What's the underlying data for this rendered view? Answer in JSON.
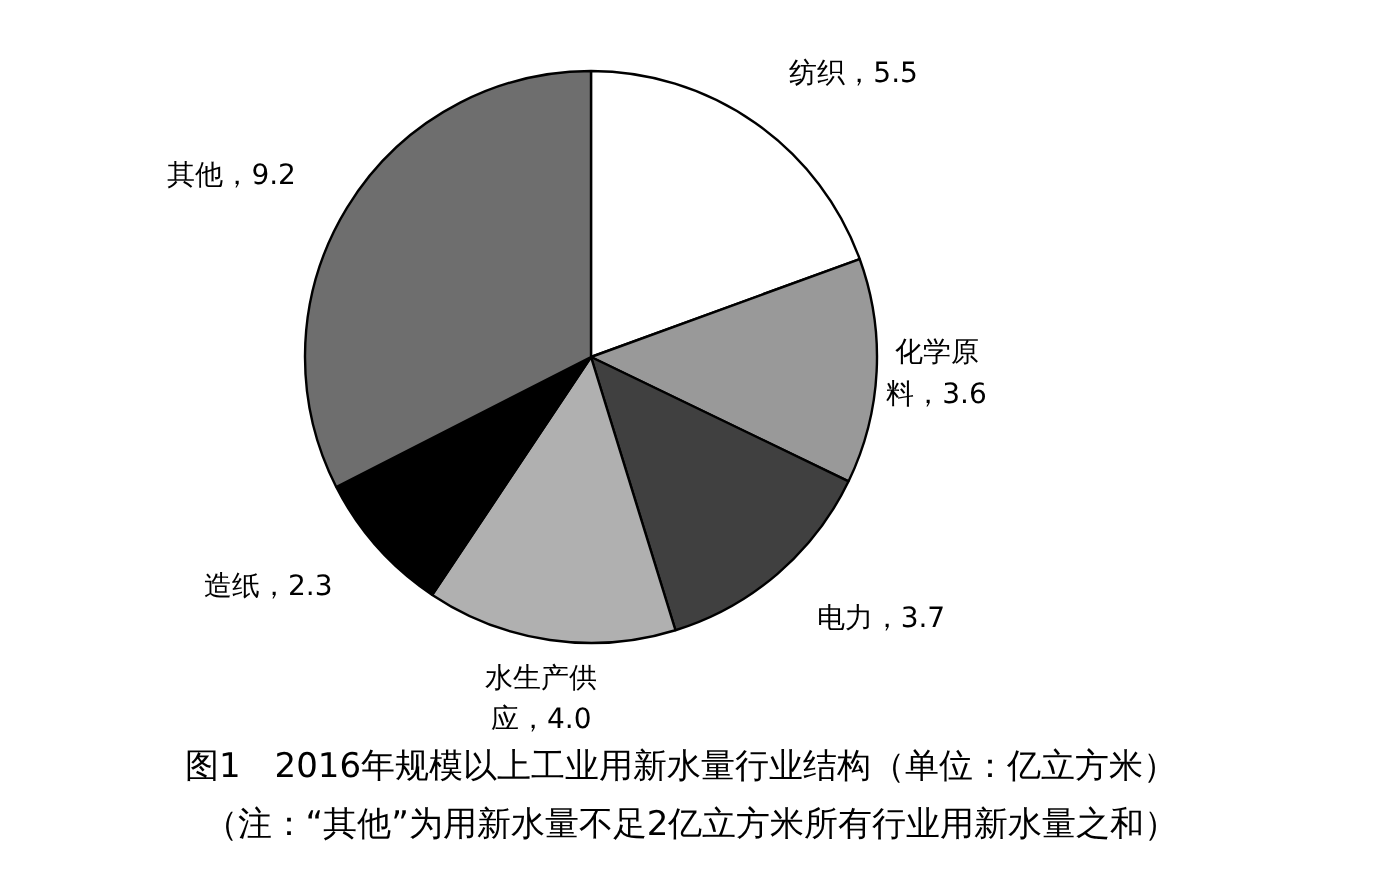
{
  "chart_data": {
    "type": "pie",
    "title": "图1　2016年规模以上工业用新水量行业结构（单位：亿立方米）",
    "annotations": [
      "（注：“其他”为用新水量不足2亿立方米所有行业用新水量之和）"
    ],
    "categories": [
      "纺织",
      "化学原料",
      "电力",
      "水生产供应",
      "造纸",
      "其他"
    ],
    "values": [
      5.5,
      3.6,
      3.7,
      4.0,
      2.3,
      9.2
    ],
    "colors": [
      "#ffffff",
      "#999999",
      "#404040",
      "#b0b0b0",
      "#000000",
      "#6e6e6e"
    ],
    "value_labels": [
      "5.5",
      "3.6",
      "3.7",
      "4.0",
      "2.3",
      "9.2"
    ]
  }
}
